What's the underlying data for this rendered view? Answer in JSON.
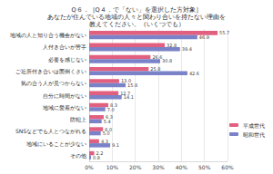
{
  "chart_data": {
    "type": "bar",
    "orientation": "horizontal",
    "title": "Q６．［Q４．で「ない」を選択した方対象］\nあなたが住んでいる地域の人々と関わり合いを持たない理由を\n教えてください。（いくつでも）",
    "categories": [
      "地域の人と知り合う機会がない",
      "人付き合いが苦手",
      "必要を感じない",
      "ご近所付き合いは面倒くさい",
      "気の合う人が見つからない",
      "自分に時間がない",
      "地域に愛着がない",
      "防犯上",
      "SNSなどでも人とつながれる",
      "地域にいることが少ない",
      "その他"
    ],
    "series": [
      {
        "name": "平成世代",
        "color": "#e2607f",
        "values": [
          55.7,
          32.8,
          26.6,
          25.8,
          13.0,
          12.7,
          8.3,
          6.3,
          6.0,
          4.3,
          2.2
        ],
        "value_labels": [
          "55.7",
          "32.8",
          "26.6",
          "25.8",
          "13.0",
          "12.7",
          "8.3",
          "6.3",
          "6.0",
          "4.3",
          "2.2"
        ]
      },
      {
        "name": "昭和世代",
        "color": "#7a82c8",
        "values": [
          46.9,
          39.4,
          30.8,
          42.6,
          15.8,
          14.1,
          7.0,
          5.4,
          5.0,
          9.1,
          0.8
        ],
        "value_labels": [
          "46.9",
          "39.4",
          "30.8",
          "42.6",
          "15.8",
          "14.1",
          "7.0",
          "5.4",
          "5.0",
          "9.1",
          "0.8"
        ]
      }
    ],
    "xlim": [
      0,
      60
    ],
    "xticks": [
      {
        "value": 0,
        "label": "0%"
      },
      {
        "value": 10,
        "label": "10%"
      },
      {
        "value": 20,
        "label": "20%"
      },
      {
        "value": 30,
        "label": "30%"
      },
      {
        "value": 40,
        "label": "40%"
      },
      {
        "value": 50,
        "label": "50%"
      },
      {
        "value": 60,
        "label": "60%"
      }
    ],
    "grid": true,
    "legend": "right",
    "data_labels": true
  }
}
